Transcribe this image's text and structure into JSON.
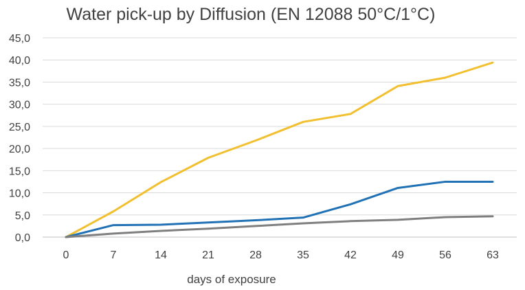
{
  "chart_data": {
    "type": "line",
    "title": "Water pick-up by Diffusion (EN 12088 50°C/1°C)",
    "xlabel": "days of exposure",
    "ylabel": "",
    "x": [
      0,
      7,
      14,
      21,
      28,
      35,
      42,
      49,
      56,
      63
    ],
    "x_tick_labels": [
      "0",
      "7",
      "14",
      "21",
      "28",
      "35",
      "42",
      "49",
      "56",
      "63"
    ],
    "ylim": [
      0,
      45
    ],
    "y_ticks": [
      0,
      5,
      10,
      15,
      20,
      25,
      30,
      35,
      40,
      45
    ],
    "y_tick_labels": [
      "0,0",
      "5,0",
      "10,0",
      "15,0",
      "20,0",
      "25,0",
      "30,0",
      "35,0",
      "40,0",
      "45,0"
    ],
    "grid": true,
    "legend": "none",
    "series": [
      {
        "color": "#f2bf2f",
        "values": [
          0,
          5.8,
          12.4,
          17.9,
          21.8,
          26.0,
          27.8,
          34.1,
          36.0,
          39.4
        ]
      },
      {
        "color": "#2171b5",
        "values": [
          0,
          2.7,
          2.8,
          3.3,
          3.8,
          4.4,
          7.4,
          11.1,
          12.5,
          12.5
        ]
      },
      {
        "color": "#7f7f7f",
        "values": [
          0,
          0.8,
          1.4,
          1.9,
          2.5,
          3.1,
          3.6,
          3.9,
          4.5,
          4.7
        ]
      }
    ]
  }
}
